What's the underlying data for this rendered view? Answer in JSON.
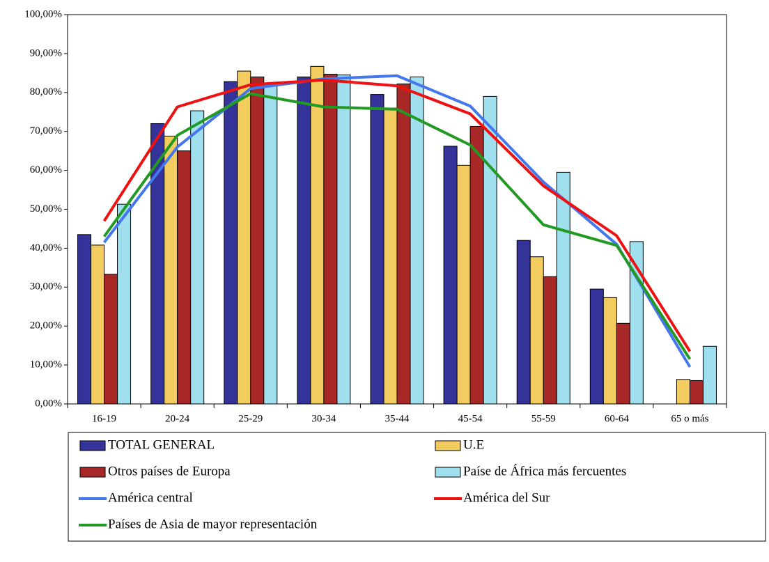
{
  "chart_data": {
    "type": "bar",
    "categories": [
      "16-19",
      "20-24",
      "25-29",
      "30-34",
      "35-44",
      "45-54",
      "55-59",
      "60-64",
      "65 o más"
    ],
    "ylim": [
      0,
      100
    ],
    "yticks": [
      {
        "value": 0,
        "label": "0,00%"
      },
      {
        "value": 10,
        "label": "10,00%"
      },
      {
        "value": 20,
        "label": "20,00%"
      },
      {
        "value": 30,
        "label": "30,00%"
      },
      {
        "value": 40,
        "label": "40,00%"
      },
      {
        "value": 50,
        "label": "50,00%"
      },
      {
        "value": 60,
        "label": "60,00%"
      },
      {
        "value": 70,
        "label": "70,00%"
      },
      {
        "value": 80,
        "label": "80,00%"
      },
      {
        "value": 90,
        "label": "90,00%"
      },
      {
        "value": 100,
        "label": "100,00%"
      }
    ],
    "legend": "bottom",
    "series": [
      {
        "name": "TOTAL GENERAL",
        "type": "bar",
        "color": "#333399",
        "values": [
          43.5,
          72,
          82.8,
          84,
          79.5,
          66.2,
          42,
          29.5,
          null
        ]
      },
      {
        "name": "U.E",
        "type": "bar",
        "color": "#f2cc5e",
        "values": [
          40.8,
          68.8,
          85.5,
          86.7,
          76,
          61.3,
          37.8,
          27.3,
          6.3
        ]
      },
      {
        "name": "Otros países de Europa",
        "type": "bar",
        "color": "#a82828",
        "values": [
          33.3,
          65,
          84,
          84.7,
          82.2,
          71.3,
          32.7,
          20.7,
          6
        ]
      },
      {
        "name": "Paíse de África más fercuentes",
        "type": "bar",
        "color": "#9fdfee",
        "values": [
          51.3,
          75.3,
          82,
          84.5,
          84,
          79,
          59.5,
          41.7,
          14.8
        ]
      },
      {
        "name": "América central",
        "type": "line",
        "color": "#4477ee",
        "values": [
          41.5,
          66,
          81,
          83.5,
          84.3,
          76.5,
          57,
          41,
          9.5
        ]
      },
      {
        "name": "América del Sur",
        "type": "line",
        "color": "#ee1111",
        "values": [
          47,
          76.3,
          82,
          83.2,
          81.7,
          74.5,
          56,
          43.2,
          13.5
        ]
      },
      {
        "name": "Países de Asia de mayor representación",
        "type": "line",
        "color": "#229922",
        "values": [
          43,
          69,
          79.7,
          76.3,
          75.7,
          66.5,
          46,
          40.7,
          11.5
        ]
      }
    ]
  }
}
